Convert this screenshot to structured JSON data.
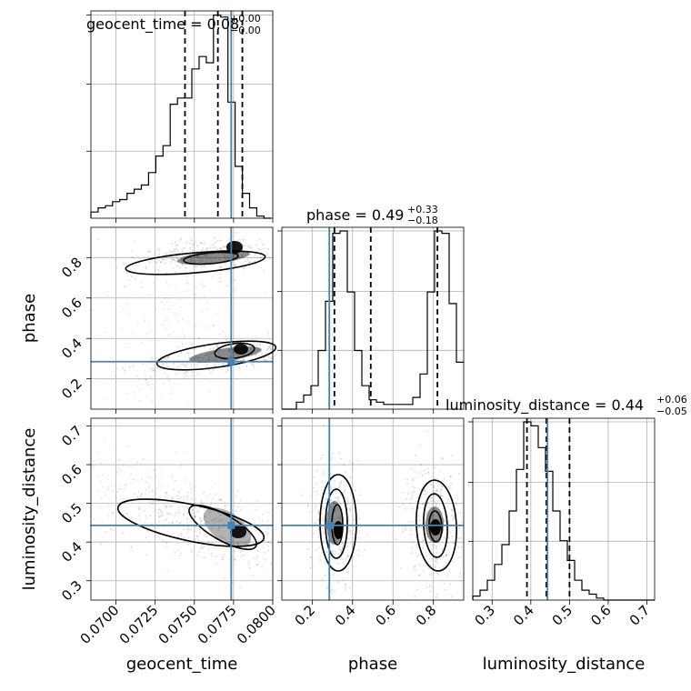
{
  "truth_color": "#4682b4",
  "chart_data": [
    {
      "type": "histogram",
      "panel": "geocent_time",
      "title": {
        "main": "geocent_time = 0.08",
        "plus": "+0.00",
        "minus": "−0.00"
      },
      "x_range": [
        0.0684,
        0.08
      ],
      "x_ticks": [],
      "bin_width": 0.00046,
      "bins_start": 0.0684,
      "counts": [
        3,
        5,
        6,
        8,
        9,
        12,
        14,
        16,
        22,
        30,
        35,
        55,
        58,
        58,
        72,
        78,
        75,
        98,
        97,
        56,
        25,
        12,
        5,
        1,
        0
      ],
      "quantiles": [
        0.0744,
        0.0765,
        0.07806
      ],
      "truth": 0.07735
    },
    {
      "type": "histogram",
      "panel": "phase",
      "title": {
        "main": "phase = 0.49",
        "plus": "+0.33",
        "minus": "−0.18"
      },
      "x_range": [
        0.05,
        0.95
      ],
      "x_ticks": [],
      "bin_width": 0.036,
      "bins_start": 0.05,
      "counts": [
        0,
        0,
        3,
        6,
        10,
        25,
        46,
        75,
        76,
        50,
        25,
        10,
        4,
        3,
        2,
        2,
        2,
        2,
        5,
        15,
        50,
        76,
        75,
        45,
        20
      ],
      "quantiles": [
        0.31,
        0.49,
        0.82
      ],
      "truth": 0.285
    },
    {
      "type": "histogram",
      "panel": "luminosity_distance",
      "title": {
        "main": "luminosity_distance = 0.44",
        "plus": "+0.06",
        "minus": "−0.05"
      },
      "x_range": [
        0.25,
        0.72
      ],
      "x_ticks": [
        "0.3",
        "0.4",
        "0.5",
        "0.6",
        "0.7"
      ],
      "bin_width": 0.0188,
      "bins_start": 0.25,
      "counts": [
        2,
        5,
        10,
        18,
        28,
        45,
        66,
        90,
        88,
        77,
        65,
        45,
        30,
        20,
        10,
        5,
        3,
        1,
        0,
        0,
        0,
        0,
        0,
        0,
        0
      ],
      "quantiles": [
        0.39,
        0.44,
        0.5
      ],
      "truth": 0.443
    },
    {
      "type": "contour",
      "panel": "geocent_time vs phase",
      "x_range": [
        0.0684,
        0.08
      ],
      "y_range": [
        0.05,
        0.95
      ],
      "y_ticks": [
        "0.2",
        "0.4",
        "0.6",
        "0.8"
      ],
      "truth": [
        0.07735,
        0.285
      ]
    },
    {
      "type": "contour",
      "panel": "geocent_time vs luminosity_distance",
      "x_range": [
        0.0684,
        0.08
      ],
      "y_range": [
        0.25,
        0.72
      ],
      "x_ticks": [
        "0.0700",
        "0.0725",
        "0.0750",
        "0.0775",
        "0.0800"
      ],
      "y_ticks": [
        "0.3",
        "0.4",
        "0.5",
        "0.6",
        "0.7"
      ],
      "truth": [
        0.07735,
        0.443
      ]
    },
    {
      "type": "contour",
      "panel": "phase vs luminosity_distance",
      "x_range": [
        0.05,
        0.95
      ],
      "y_range": [
        0.25,
        0.72
      ],
      "x_ticks": [
        "0.2",
        "0.4",
        "0.6",
        "0.8"
      ],
      "truth": [
        0.285,
        0.443
      ]
    }
  ],
  "axis_labels": {
    "geocent_time": "geocent_time",
    "phase": "phase",
    "luminosity_distance": "luminosity_distance"
  }
}
